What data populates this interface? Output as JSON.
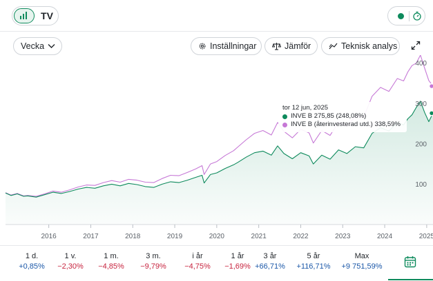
{
  "toolbar": {
    "chart_toggle_icon": "chart-lines-icon",
    "tradingview_label": "TV",
    "live_icon": "timer-icon",
    "period_select": "Vecka",
    "settings_label": "Inställningar",
    "compare_label": "Jämför",
    "technical_label": "Teknisk analys",
    "expand_icon": "expand-icon"
  },
  "tooltip": {
    "date": "tor 12 jun, 2025",
    "series1": "INVE B 275,85 (248,08%)",
    "series2": "INVE B (återinvesterad utd.) 338,59%"
  },
  "periods": [
    {
      "label": "1 d.",
      "value": "+0,85%",
      "sign": "pos"
    },
    {
      "label": "1 v.",
      "value": "−2,30%",
      "sign": "neg"
    },
    {
      "label": "1 m.",
      "value": "−4,85%",
      "sign": "neg"
    },
    {
      "label": "3 m.",
      "value": "−9,79%",
      "sign": "neg"
    },
    {
      "label": "i år",
      "value": "−4,75%",
      "sign": "neg"
    },
    {
      "label": "1 år",
      "value": "−1,69%",
      "sign": "neg"
    },
    {
      "label": "3 år",
      "value": "+66,71%",
      "sign": "pos"
    },
    {
      "label": "5 år",
      "value": "+116,71%",
      "sign": "pos"
    },
    {
      "label": "Max",
      "value": "+9 751,59%",
      "sign": "pos"
    }
  ],
  "colors": {
    "primary_series": "#0d8a5c",
    "reinvested_series": "#c678d6",
    "positive_text": "#1a57a8",
    "negative_text": "#c7243f"
  },
  "chart_data": {
    "type": "line",
    "title": "",
    "xlabel": "",
    "ylabel": "",
    "x_ticks": [
      "2016",
      "2017",
      "2018",
      "2019",
      "2020",
      "2021",
      "2022",
      "2023",
      "2024",
      "2025"
    ],
    "y_ticks": [
      100,
      200,
      300,
      400
    ],
    "ylim": [
      0,
      420
    ],
    "xlim": [
      2015.47,
      2025.65
    ],
    "grid": false,
    "legend": "tooltip",
    "series": [
      {
        "name": "INVE B",
        "x": [
          2015.47,
          2015.6,
          2015.75,
          2015.9,
          2016.0,
          2016.2,
          2016.4,
          2016.6,
          2016.8,
          2017.0,
          2017.2,
          2017.4,
          2017.6,
          2017.8,
          2018.0,
          2018.2,
          2018.4,
          2018.6,
          2018.8,
          2019.0,
          2019.2,
          2019.4,
          2019.6,
          2019.8,
          2020.0,
          2020.15,
          2020.2,
          2020.35,
          2020.5,
          2020.7,
          2020.9,
          2021.0,
          2021.2,
          2021.4,
          2021.6,
          2021.8,
          2021.95,
          2022.1,
          2022.3,
          2022.5,
          2022.7,
          2022.8,
          2023.0,
          2023.2,
          2023.4,
          2023.6,
          2023.8,
          2024.0,
          2024.2,
          2024.4,
          2024.6,
          2024.8,
          2024.95,
          2025.05,
          2025.15,
          2025.25,
          2025.35,
          2025.45,
          2025.55,
          2025.65
        ],
        "y": [
          78,
          72,
          76,
          70,
          71,
          68,
          74,
          80,
          77,
          82,
          88,
          92,
          90,
          96,
          100,
          96,
          102,
          99,
          94,
          92,
          100,
          106,
          104,
          110,
          117,
          122,
          103,
          124,
          128,
          139,
          148,
          154,
          167,
          178,
          182,
          172,
          195,
          176,
          163,
          178,
          170,
          150,
          172,
          162,
          185,
          176,
          193,
          190,
          226,
          240,
          232,
          253,
          247,
          262,
          272,
          290,
          306,
          278,
          255,
          276
        ]
      },
      {
        "name": "INVE B (återinvesterad utd.)",
        "x": [
          2015.47,
          2015.6,
          2015.75,
          2015.9,
          2016.0,
          2016.2,
          2016.4,
          2016.6,
          2016.8,
          2017.0,
          2017.2,
          2017.4,
          2017.6,
          2017.8,
          2018.0,
          2018.2,
          2018.4,
          2018.6,
          2018.8,
          2019.0,
          2019.2,
          2019.4,
          2019.6,
          2019.8,
          2020.0,
          2020.15,
          2020.2,
          2020.35,
          2020.5,
          2020.7,
          2020.9,
          2021.0,
          2021.2,
          2021.4,
          2021.6,
          2021.8,
          2021.95,
          2022.1,
          2022.3,
          2022.5,
          2022.7,
          2022.8,
          2023.0,
          2023.2,
          2023.4,
          2023.6,
          2023.8,
          2024.0,
          2024.2,
          2024.4,
          2024.6,
          2024.8,
          2024.95,
          2025.05,
          2025.15,
          2025.25,
          2025.35,
          2025.45,
          2025.55,
          2025.65
        ],
        "y": [
          79,
          73,
          77,
          71,
          72,
          70,
          76,
          83,
          80,
          86,
          93,
          98,
          97,
          104,
          109,
          105,
          112,
          110,
          105,
          104,
          114,
          122,
          121,
          129,
          138,
          146,
          124,
          150,
          156,
          171,
          183,
          192,
          210,
          226,
          233,
          222,
          253,
          231,
          215,
          236,
          227,
          202,
          233,
          221,
          254,
          244,
          268,
          266,
          318,
          340,
          330,
          362,
          356,
          378,
          394,
          400,
          420,
          388,
          357,
          343
        ]
      }
    ]
  }
}
